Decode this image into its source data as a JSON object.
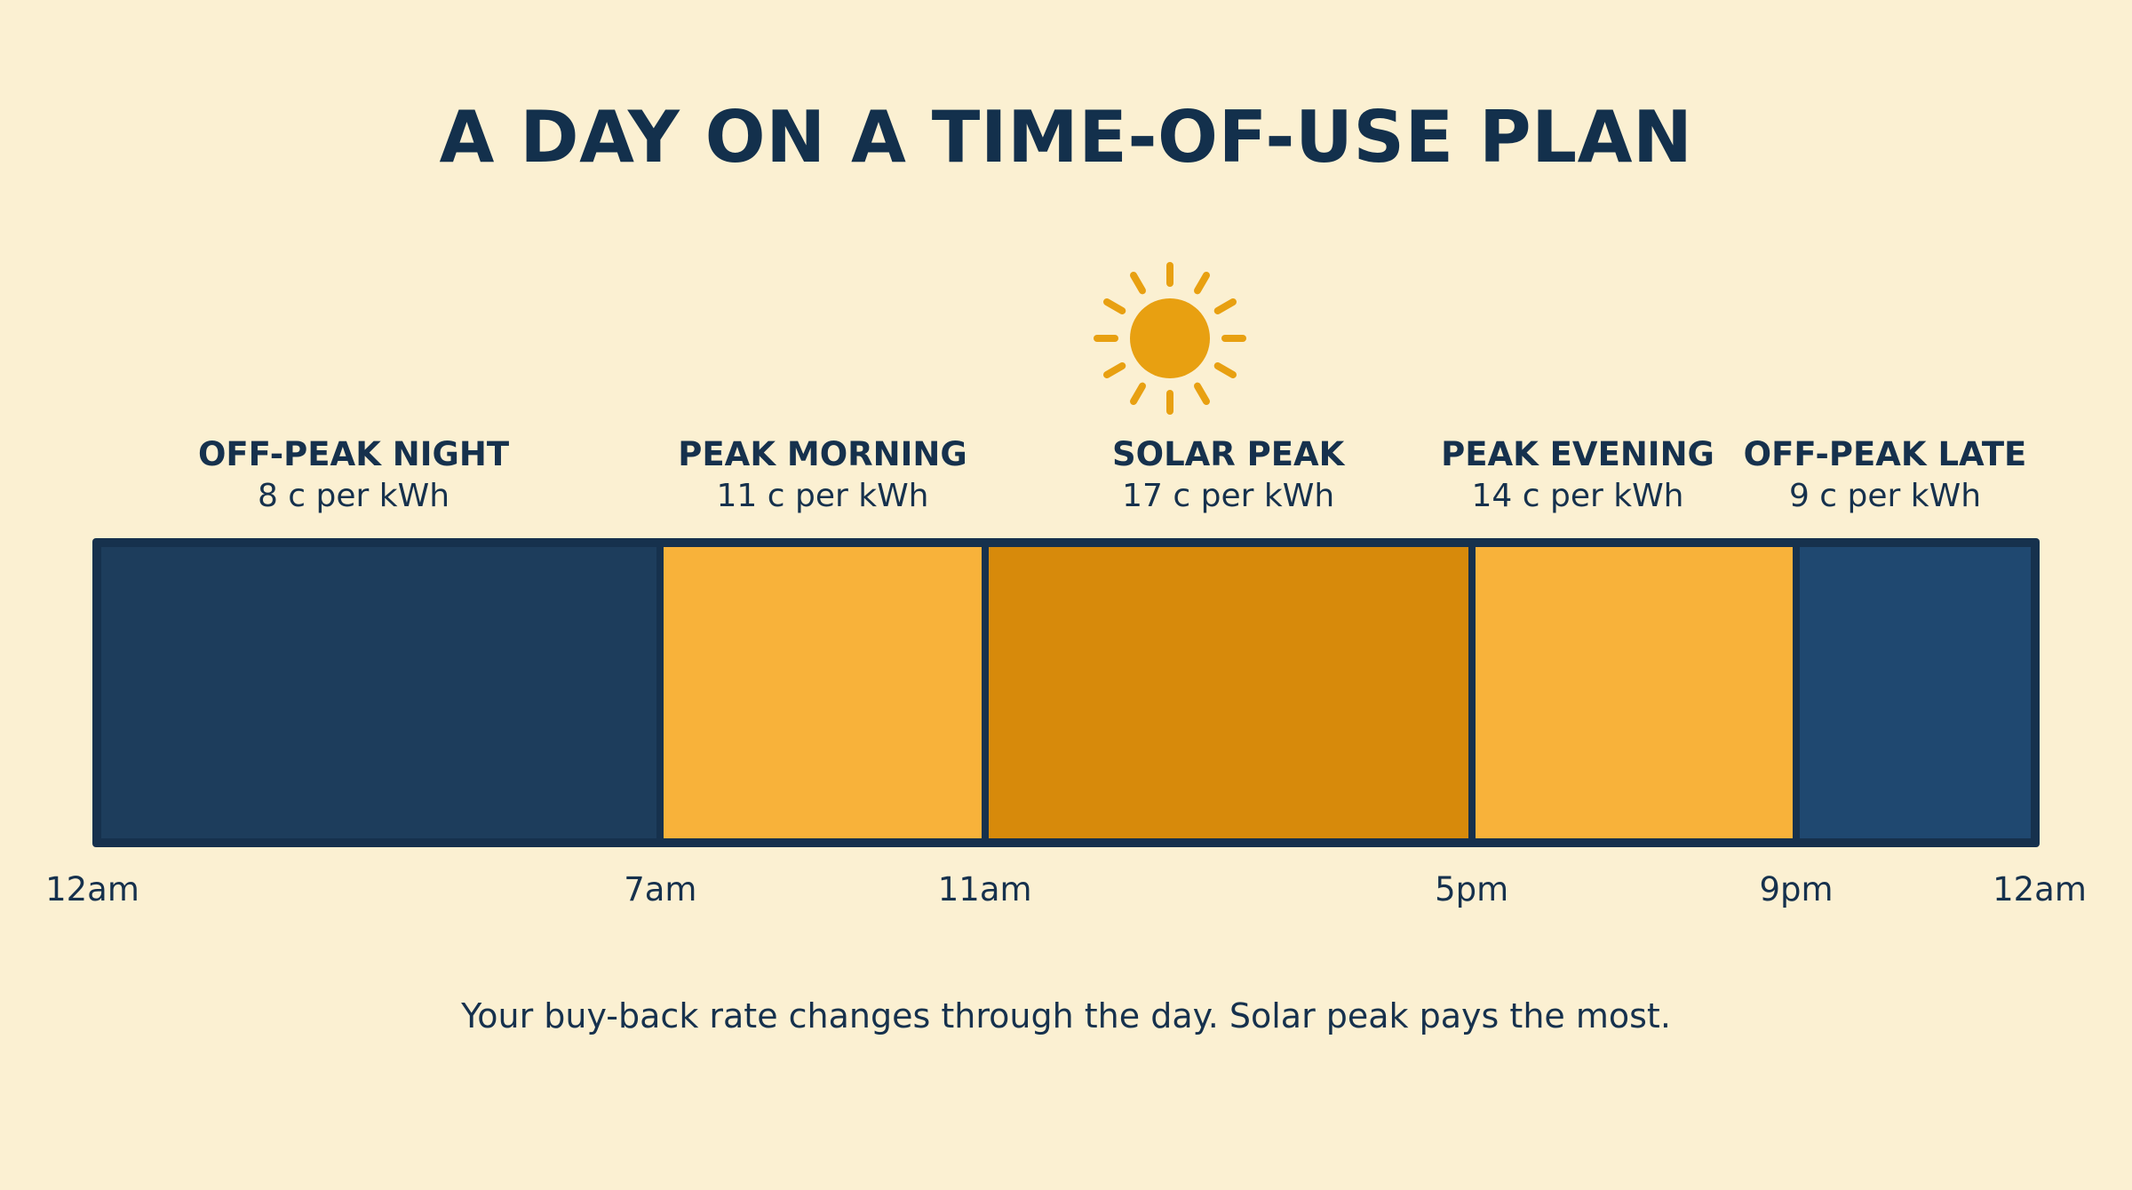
{
  "title": "A DAY ON A TIME-OF-USE PLAN",
  "icon": "sun-icon",
  "colors": {
    "background": "#fbf0d2",
    "text": "#16314d",
    "sun": "#e8a011",
    "frame": "#16314d"
  },
  "periods": [
    {
      "name": "OFF-PEAK NIGHT",
      "rate": "8 c per kWh",
      "rate_value": 8,
      "start_hour": 0,
      "end_hour": 7,
      "color": "#1d3d5c"
    },
    {
      "name": "PEAK MORNING",
      "rate": "11 c per kWh",
      "rate_value": 11,
      "start_hour": 7,
      "end_hour": 11,
      "color": "#f8b23a"
    },
    {
      "name": "SOLAR PEAK",
      "rate": "17 c per kWh",
      "rate_value": 17,
      "start_hour": 11,
      "end_hour": 17,
      "color": "#d78a0b"
    },
    {
      "name": "PEAK EVENING",
      "rate": "14 c per kWh",
      "rate_value": 14,
      "start_hour": 17,
      "end_hour": 21,
      "color": "#f8b23a"
    },
    {
      "name": "OFF-PEAK LATE",
      "rate": "9 c per kWh",
      "rate_value": 9,
      "start_hour": 21,
      "end_hour": 24,
      "color": "#1f4870"
    }
  ],
  "ticks": [
    {
      "label": "12am",
      "hour": 0
    },
    {
      "label": "7am",
      "hour": 7
    },
    {
      "label": "11am",
      "hour": 11
    },
    {
      "label": "5pm",
      "hour": 17
    },
    {
      "label": "9pm",
      "hour": 21
    },
    {
      "label": "12am",
      "hour": 24
    }
  ],
  "caption": "Your buy-back rate changes through the day. Solar peak pays the most."
}
